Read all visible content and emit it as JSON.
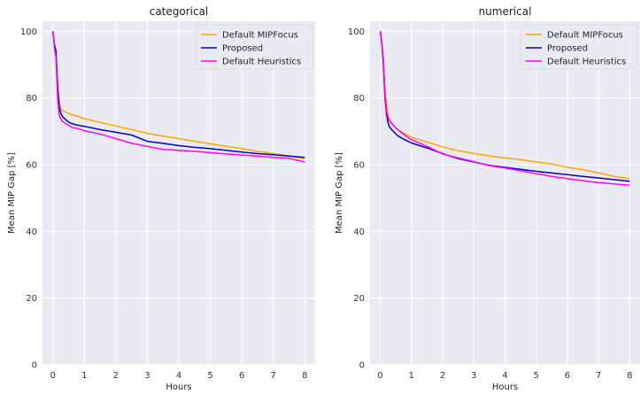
{
  "chart_data": [
    {
      "type": "line",
      "title": "categorical",
      "xlabel": "Hours",
      "ylabel": "Mean MIP Gap [%]",
      "xlim": [
        -0.33,
        8.33
      ],
      "ylim": [
        0,
        103
      ],
      "xticks": [
        0,
        1,
        2,
        3,
        4,
        5,
        6,
        7,
        8
      ],
      "yticks": [
        0,
        20,
        40,
        60,
        80,
        100
      ],
      "grid": true,
      "legend": "top-right",
      "series": [
        {
          "name": "Default MIPFocus",
          "color": "#FFA500",
          "x": [
            0,
            0.05,
            0.1,
            0.15,
            0.2,
            0.25,
            0.3,
            0.4,
            0.5,
            0.6,
            0.8,
            1.0,
            1.5,
            2.0,
            2.5,
            3.0,
            3.5,
            4.0,
            4.5,
            5.0,
            5.5,
            6.0,
            6.5,
            7.0,
            7.5,
            8.0
          ],
          "y": [
            100,
            96,
            93,
            85,
            79,
            77,
            76.3,
            75.8,
            75.3,
            75,
            74.5,
            73.8,
            72.7,
            71.6,
            70.5,
            69.4,
            68.6,
            67.8,
            67,
            66.3,
            65.5,
            64.8,
            64,
            63.3,
            62.6,
            61.8
          ]
        },
        {
          "name": "Proposed",
          "color": "#0000CD",
          "x": [
            0,
            0.05,
            0.1,
            0.15,
            0.2,
            0.25,
            0.3,
            0.4,
            0.5,
            0.6,
            0.8,
            1.0,
            1.5,
            2.0,
            2.5,
            3.0,
            3.5,
            4.0,
            4.5,
            5.0,
            5.5,
            6.0,
            6.5,
            7.0,
            7.5,
            8.0
          ],
          "y": [
            100,
            96,
            94,
            83,
            77.5,
            75.5,
            74.5,
            73.5,
            72.8,
            72.3,
            71.8,
            71.5,
            70.5,
            69.7,
            68.9,
            67,
            66.4,
            65.7,
            65.2,
            64.8,
            64.3,
            63.8,
            63.3,
            63,
            62.6,
            62.2
          ]
        },
        {
          "name": "Default Heuristics",
          "color": "#FF00FF",
          "x": [
            0,
            0.05,
            0.1,
            0.15,
            0.2,
            0.25,
            0.3,
            0.4,
            0.5,
            0.6,
            0.8,
            1.0,
            1.5,
            2.0,
            2.5,
            3.0,
            3.5,
            4.0,
            4.5,
            5.0,
            5.5,
            6.0,
            6.5,
            7.0,
            7.5,
            8.0
          ],
          "y": [
            100,
            95,
            92,
            80,
            75,
            73.8,
            73,
            72.3,
            71.8,
            71.2,
            70.8,
            70.2,
            69.2,
            67.8,
            66.4,
            65.5,
            64.6,
            64.3,
            64,
            63.6,
            63.2,
            62.9,
            62.6,
            62.2,
            61.9,
            60.8
          ]
        }
      ]
    },
    {
      "type": "line",
      "title": "numerical",
      "xlabel": "Hours",
      "ylabel": "Mean MIP Gap [%]",
      "xlim": [
        -0.33,
        8.33
      ],
      "ylim": [
        0,
        103
      ],
      "xticks": [
        0,
        1,
        2,
        3,
        4,
        5,
        6,
        7,
        8
      ],
      "yticks": [
        0,
        20,
        40,
        60,
        80,
        100
      ],
      "grid": true,
      "legend": "top-right",
      "series": [
        {
          "name": "Default MIPFocus",
          "color": "#FFA500",
          "x": [
            0,
            0.05,
            0.1,
            0.15,
            0.2,
            0.25,
            0.3,
            0.4,
            0.5,
            0.6,
            0.8,
            1.0,
            1.5,
            2.0,
            2.5,
            3.0,
            3.5,
            4.0,
            4.5,
            5.0,
            5.5,
            6.0,
            6.5,
            7.0,
            7.5,
            8.0
          ],
          "y": [
            100,
            97,
            92,
            83,
            78,
            75,
            73.5,
            72,
            71,
            70.3,
            69.2,
            68.2,
            66.8,
            65.3,
            64.2,
            63.4,
            62.6,
            62,
            61.5,
            60.8,
            60.2,
            59.2,
            58.5,
            57.5,
            56.5,
            55.8
          ]
        },
        {
          "name": "Proposed",
          "color": "#0000CD",
          "x": [
            0,
            0.05,
            0.1,
            0.15,
            0.2,
            0.25,
            0.3,
            0.4,
            0.5,
            0.6,
            0.8,
            1.0,
            1.5,
            2.0,
            2.5,
            3.0,
            3.5,
            4.0,
            4.5,
            5.0,
            5.5,
            6.0,
            6.5,
            7.0,
            7.5,
            8.0
          ],
          "y": [
            100,
            96,
            90,
            80,
            75,
            72.5,
            71.2,
            70.2,
            69.2,
            68.4,
            67.4,
            66.5,
            65,
            63.3,
            61.8,
            60.8,
            59.8,
            59.2,
            58.6,
            58,
            57.5,
            57,
            56.5,
            56,
            55.5,
            55
          ]
        },
        {
          "name": "Default Heuristics",
          "color": "#FF00FF",
          "x": [
            0,
            0.05,
            0.1,
            0.15,
            0.2,
            0.25,
            0.3,
            0.4,
            0.5,
            0.6,
            0.8,
            1.0,
            1.5,
            2.0,
            2.5,
            3.0,
            3.5,
            4.0,
            4.5,
            5.0,
            5.5,
            6.0,
            6.5,
            7.0,
            7.5,
            8.0
          ],
          "y": [
            100,
            96,
            91,
            81,
            76,
            74,
            73,
            72,
            71,
            70.2,
            68.7,
            67.5,
            65.5,
            63.2,
            62,
            60.9,
            59.7,
            59,
            58.2,
            57.3,
            56.5,
            55.8,
            55.2,
            54.6,
            54.2,
            53.8
          ]
        }
      ]
    }
  ]
}
